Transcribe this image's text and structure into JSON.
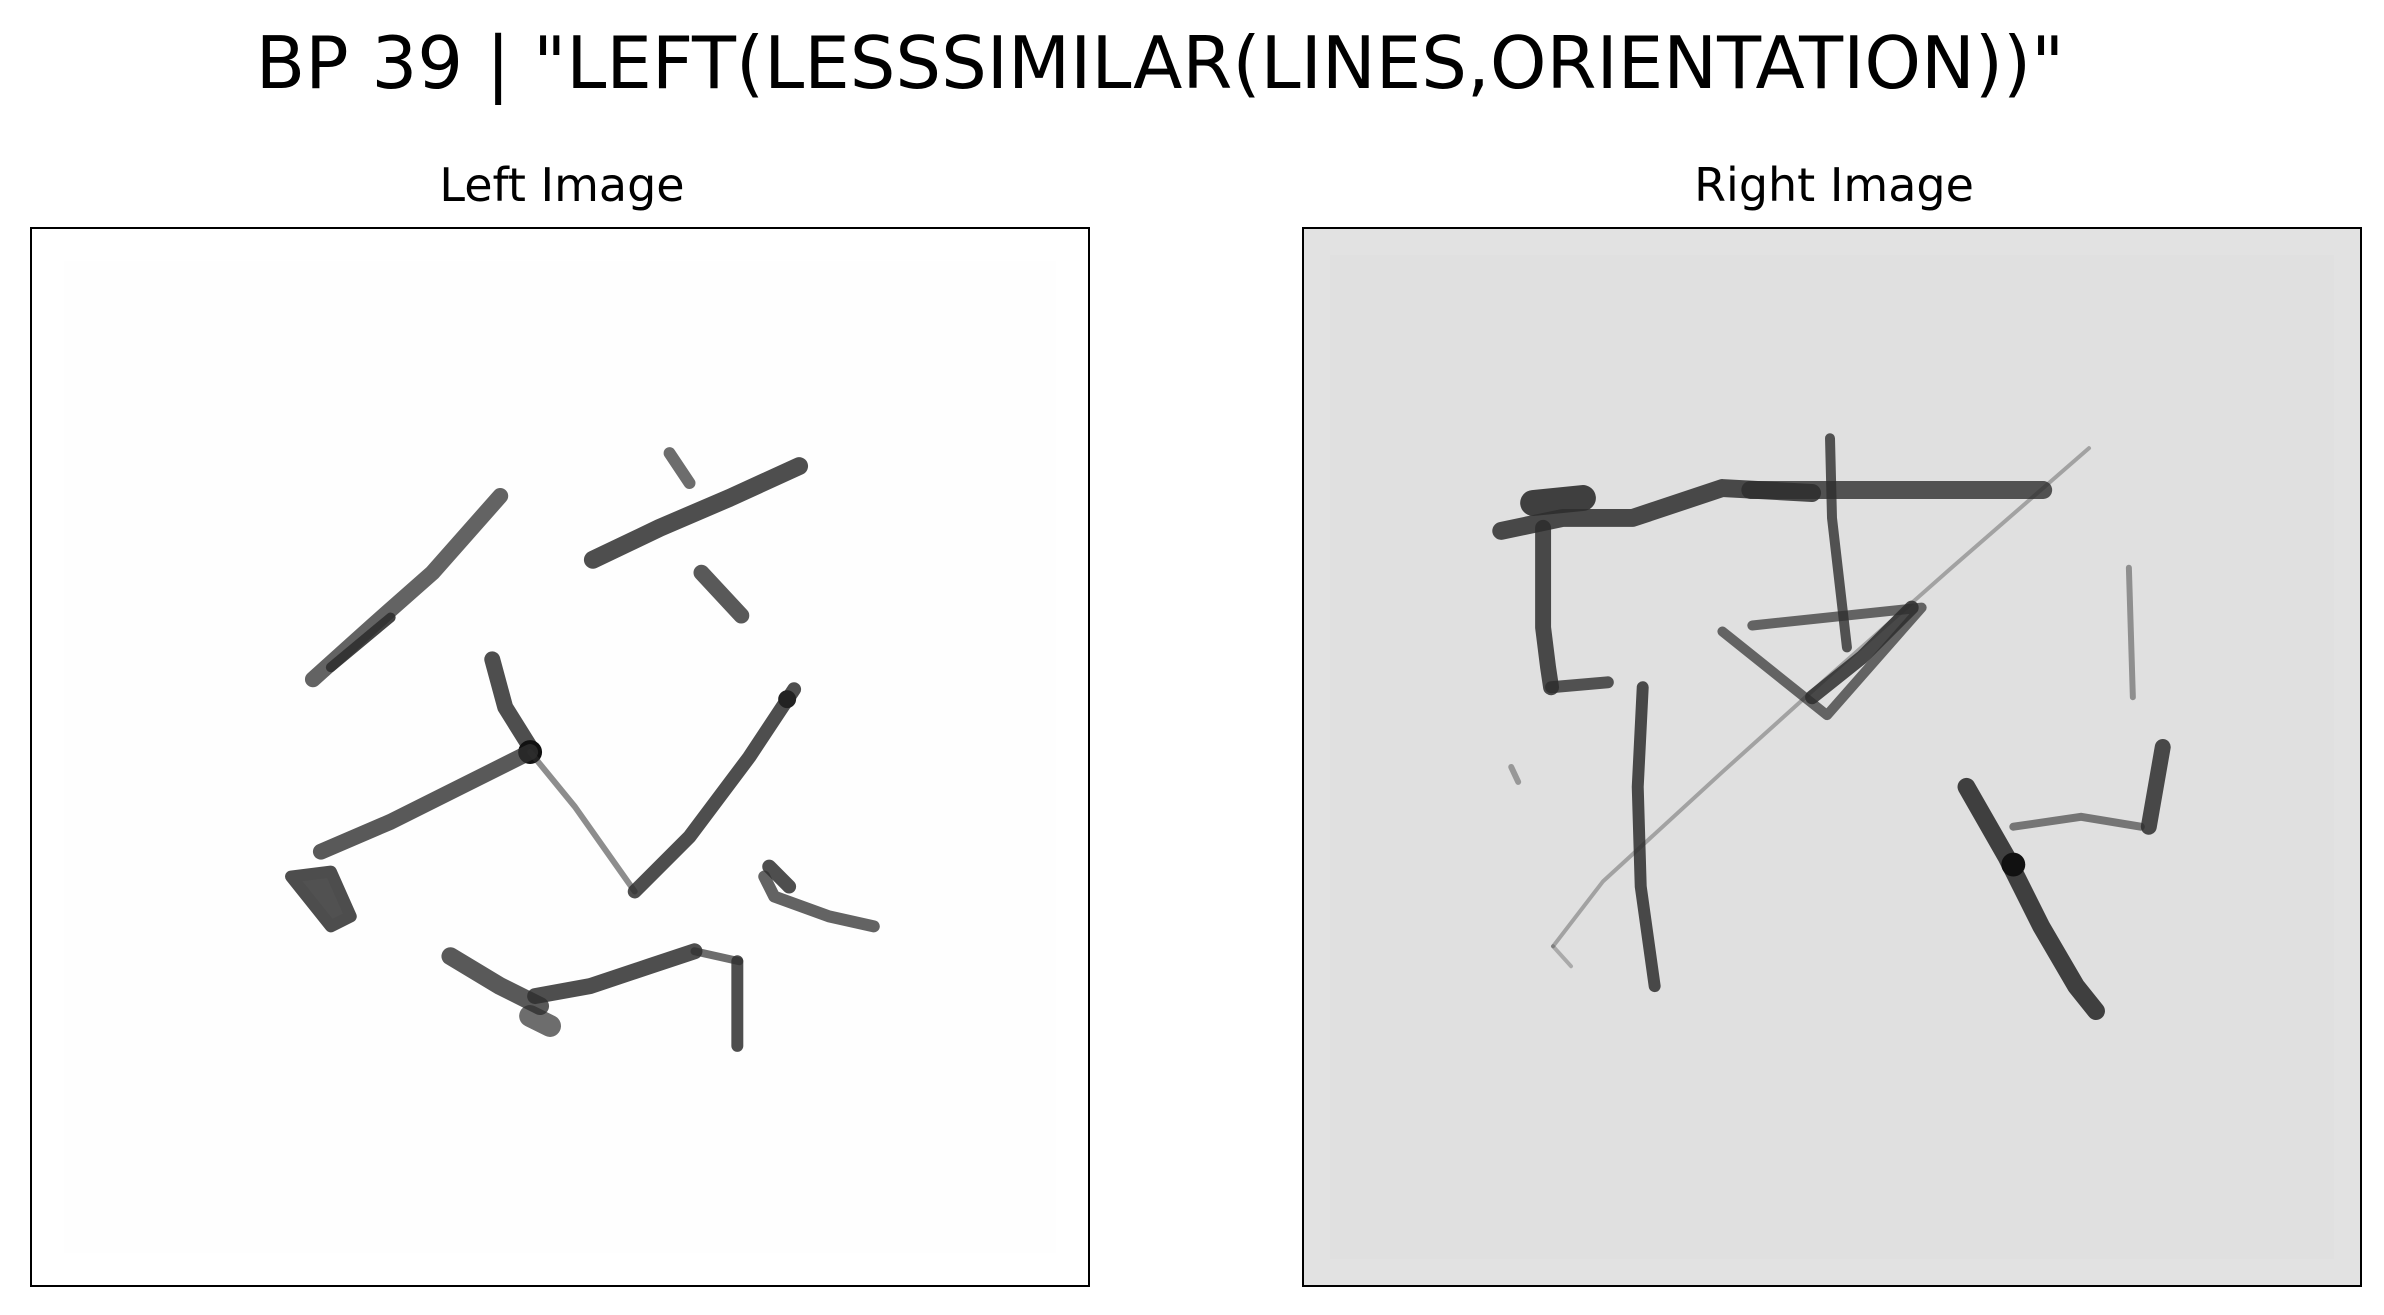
{
  "figure": {
    "title": "BP 39 | \"LEFT(LESSSIMILAR(LINES,ORIENTATION))\""
  },
  "panels": [
    {
      "title": "Left Image",
      "background": "#ffffff",
      "content": "hand-drawn strokes at varied orientations"
    },
    {
      "title": "Right Image",
      "background": "#e2e2e2",
      "content": "hand-drawn strokes forming frames and triangle"
    }
  ],
  "colors": {
    "ink": "#2b2b2b",
    "ink_light": "#8a8a8a",
    "frame": "#000000"
  }
}
